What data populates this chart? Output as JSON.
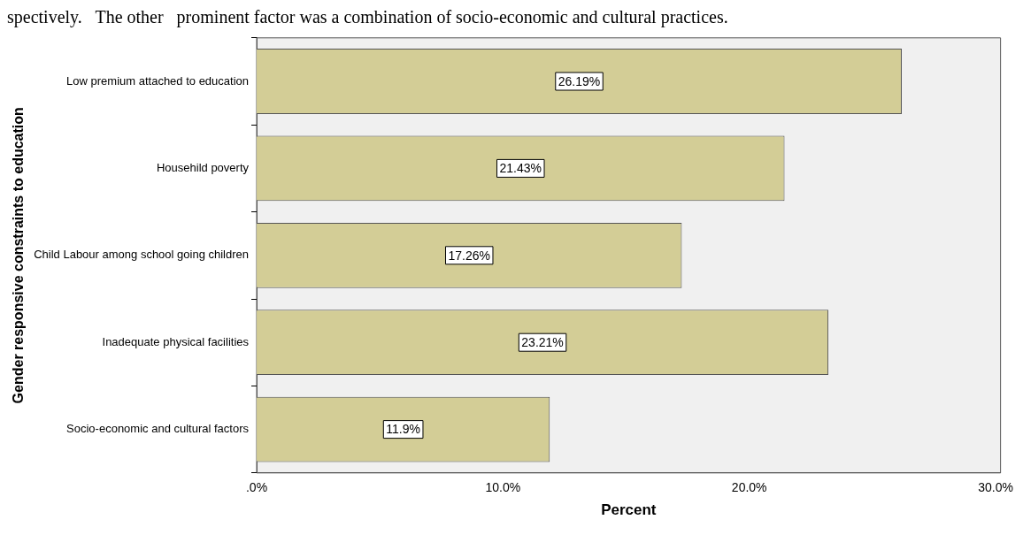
{
  "chart_data": {
    "type": "bar",
    "orientation": "horizontal",
    "annotations": [
      "spectively.   The other   prominent factor was a combination of socio-economic and cultural practices."
    ],
    "ylabel": "Gender responsive constraints to education",
    "xlabel": "Percent",
    "categories": [
      "Low premium attached to education",
      "Househild poverty",
      "Child Labour among school going children",
      "Inadequate physical facilities",
      "Socio-economic and cultural factors"
    ],
    "values": [
      26.19,
      21.43,
      17.26,
      23.21,
      11.9
    ],
    "value_labels": [
      "26.19%",
      "21.43%",
      "17.26%",
      "23.21%",
      "11.9%"
    ],
    "color": "#d3cd96",
    "xlim": [
      0,
      30.2
    ],
    "xticks": [
      {
        "value": 0,
        "label": ".0%"
      },
      {
        "value": 10,
        "label": "10.0%"
      },
      {
        "value": 20,
        "label": "20.0%"
      },
      {
        "value": 30,
        "label": "30.0%"
      }
    ],
    "grid": false,
    "legend": false
  }
}
